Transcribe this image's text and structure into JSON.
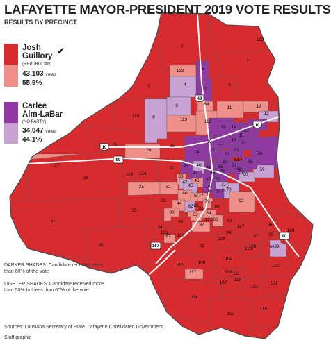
{
  "title": "LAFAYETTE MAYOR-PRESIDENT 2019 VOTE RESULTS",
  "subtitle": "RESULTS BY PRECINCT",
  "colors": {
    "guillory_dark": "#d62b2f",
    "guillory_light": "#ef8f8a",
    "almlabar_dark": "#8e3aa0",
    "almlabar_light": "#c7a2d2",
    "road": "#ffffff",
    "border": "#5a5a5a"
  },
  "candidates": [
    {
      "first": "Josh",
      "last": "Guillory",
      "party": "(REPUBLICAN)",
      "votes": "43,103",
      "votes_unit": "votes",
      "percent": "55.9%",
      "winner_mark": "check-icon"
    },
    {
      "first": "Carlee",
      "last": "Alm-LaBar",
      "party": "(NO PARTY)",
      "votes": "34,047",
      "votes_unit": "votes",
      "percent": "44.1%"
    }
  ],
  "notes": {
    "darker": "DARKER SHADES: Candidate received more than 60% of the vote",
    "lighter": "LIGHTER SHADES: Candidate received more than 50% but less than 60% of the vote"
  },
  "source": "Sources: Lousiana Secretary of State, Lafayette Consildated Government",
  "credit": "Staff graphic",
  "highways": [
    {
      "label": "49",
      "type": "interstate"
    },
    {
      "label": "10",
      "type": "interstate"
    },
    {
      "label": "10",
      "type": "interstate"
    },
    {
      "label": "90",
      "type": "us"
    },
    {
      "label": "90",
      "type": "us"
    },
    {
      "label": "167",
      "type": "us"
    }
  ],
  "precincts": [
    {
      "id": "1",
      "winner": "guillory",
      "shade": "dark"
    },
    {
      "id": "2",
      "winner": "guillory",
      "shade": "dark"
    },
    {
      "id": "3",
      "winner": "guillory",
      "shade": "dark"
    },
    {
      "id": "4",
      "winner": "almlabar",
      "shade": "light"
    },
    {
      "id": "5",
      "winner": "almlabar",
      "shade": "dark"
    },
    {
      "id": "6",
      "winner": "guillory",
      "shade": "dark"
    },
    {
      "id": "7",
      "winner": "almlabar",
      "shade": "dark"
    },
    {
      "id": "8",
      "winner": "almlabar",
      "shade": "light"
    },
    {
      "id": "9",
      "winner": "almlabar",
      "shade": "light"
    },
    {
      "id": "10",
      "winner": "almlabar",
      "shade": "dark"
    },
    {
      "id": "11",
      "winner": "guillory",
      "shade": "light"
    },
    {
      "id": "12",
      "winner": "guillory",
      "shade": "light"
    },
    {
      "id": "13",
      "winner": "almlabar",
      "shade": "light"
    },
    {
      "id": "14",
      "winner": "almlabar",
      "shade": "dark"
    },
    {
      "id": "15",
      "winner": "almlabar",
      "shade": "dark"
    },
    {
      "id": "16",
      "winner": "almlabar",
      "shade": "dark"
    },
    {
      "id": "17",
      "winner": "almlabar",
      "shade": "dark"
    },
    {
      "id": "18",
      "winner": "almlabar",
      "shade": "dark"
    },
    {
      "id": "19",
      "winner": "almlabar",
      "shade": "dark"
    },
    {
      "id": "20",
      "winner": "almlabar",
      "shade": "dark"
    },
    {
      "id": "21",
      "winner": "almlabar",
      "shade": "dark"
    },
    {
      "id": "22",
      "winner": "almlabar",
      "shade": "dark"
    },
    {
      "id": "23",
      "winner": "almlabar",
      "shade": "dark"
    },
    {
      "id": "24",
      "winner": "almlabar",
      "shade": "dark"
    },
    {
      "id": "25",
      "winner": "guillory",
      "shade": "dark"
    },
    {
      "id": "26",
      "winner": "guillory",
      "shade": "light"
    },
    {
      "id": "27",
      "winner": "guillory",
      "shade": "light"
    },
    {
      "id": "28",
      "winner": "guillory",
      "shade": "dark"
    },
    {
      "id": "30",
      "winner": "guillory",
      "shade": "dark"
    },
    {
      "id": "31",
      "winner": "guillory",
      "shade": "light"
    },
    {
      "id": "32",
      "winner": "guillory",
      "shade": "light"
    },
    {
      "id": "33",
      "winner": "guillory",
      "shade": "dark"
    },
    {
      "id": "34",
      "winner": "guillory",
      "shade": "dark"
    },
    {
      "id": "35",
      "winner": "guillory",
      "shade": "dark"
    },
    {
      "id": "36",
      "winner": "guillory",
      "shade": "dark"
    },
    {
      "id": "37",
      "winner": "guillory",
      "shade": "dark"
    },
    {
      "id": "38",
      "winner": "guillory",
      "shade": "light"
    },
    {
      "id": "39",
      "winner": "almlabar",
      "shade": "dark"
    },
    {
      "id": "40",
      "winner": "almlabar",
      "shade": "light"
    },
    {
      "id": "41",
      "winner": "almlabar",
      "shade": "dark"
    },
    {
      "id": "42",
      "winner": "almlabar",
      "shade": "light"
    },
    {
      "id": "43",
      "winner": "guillory",
      "shade": "light"
    },
    {
      "id": "44",
      "winner": "guillory",
      "shade": "light"
    },
    {
      "id": "45",
      "winner": "almlabar",
      "shade": "dark"
    },
    {
      "id": "46",
      "winner": "almlabar",
      "shade": "light"
    },
    {
      "id": "47",
      "winner": "almlabar",
      "shade": "dark"
    },
    {
      "id": "48",
      "winner": "almlabar",
      "shade": "dark"
    },
    {
      "id": "49",
      "winner": "almlabar",
      "shade": "dark"
    },
    {
      "id": "50",
      "winner": "almlabar",
      "shade": "dark"
    },
    {
      "id": "51",
      "winner": "almlabar",
      "shade": "dark"
    },
    {
      "id": "52",
      "winner": "almlabar",
      "shade": "dark"
    },
    {
      "id": "53",
      "winner": "almlabar",
      "shade": "dark"
    },
    {
      "id": "54",
      "winner": "almlabar",
      "shade": "dark"
    },
    {
      "id": "55",
      "winner": "almlabar",
      "shade": "dark"
    },
    {
      "id": "56",
      "winner": "almlabar",
      "shade": "dark"
    },
    {
      "id": "57",
      "winner": "almlabar",
      "shade": "dark"
    },
    {
      "id": "58",
      "winner": "almlabar",
      "shade": "dark"
    },
    {
      "id": "59",
      "winner": "almlabar",
      "shade": "light"
    },
    {
      "id": "60",
      "winner": "almlabar",
      "shade": "light"
    },
    {
      "id": "63",
      "winner": "almlabar",
      "shade": "dark"
    },
    {
      "id": "64",
      "winner": "guillory",
      "shade": "light"
    },
    {
      "id": "65",
      "winner": "almlabar",
      "shade": "dark"
    },
    {
      "id": "67",
      "winner": "guillory",
      "shade": "light"
    },
    {
      "id": "70",
      "winner": "almlabar",
      "shade": "light"
    },
    {
      "id": "71",
      "winner": "guillory",
      "shade": "dark"
    },
    {
      "id": "72",
      "winner": "almlabar",
      "shade": "light"
    },
    {
      "id": "73",
      "winner": "guillory",
      "shade": "light"
    },
    {
      "id": "74",
      "winner": "almlabar",
      "shade": "dark"
    },
    {
      "id": "75",
      "winner": "almlabar",
      "shade": "dark"
    },
    {
      "id": "76",
      "winner": "guillory",
      "shade": "light"
    },
    {
      "id": "77",
      "winner": "guillory",
      "shade": "light"
    },
    {
      "id": "78",
      "winner": "guillory",
      "shade": "light"
    },
    {
      "id": "79",
      "winner": "guillory",
      "shade": "light"
    },
    {
      "id": "80",
      "winner": "guillory",
      "shade": "light"
    },
    {
      "id": "81",
      "winner": "guillory",
      "shade": "light"
    },
    {
      "id": "82",
      "winner": "almlabar",
      "shade": "light"
    },
    {
      "id": "83",
      "winner": "guillory",
      "shade": "light"
    },
    {
      "id": "84",
      "winner": "guillory",
      "shade": "light"
    },
    {
      "id": "85",
      "winner": "guillory",
      "shade": "dark"
    },
    {
      "id": "86",
      "winner": "guillory",
      "shade": "light"
    },
    {
      "id": "87",
      "winner": "guillory",
      "shade": "light"
    },
    {
      "id": "88",
      "winner": "guillory",
      "shade": "dark"
    },
    {
      "id": "89",
      "winner": "guillory",
      "shade": "dark"
    },
    {
      "id": "90",
      "winner": "guillory",
      "shade": "light"
    },
    {
      "id": "91",
      "winner": "guillory",
      "shade": "dark"
    },
    {
      "id": "92",
      "winner": "guillory",
      "shade": "light"
    },
    {
      "id": "93",
      "winner": "guillory",
      "shade": "dark"
    },
    {
      "id": "94",
      "winner": "guillory",
      "shade": "dark"
    },
    {
      "id": "95",
      "winner": "guillory",
      "shade": "dark"
    },
    {
      "id": "96",
      "winner": "guillory",
      "shade": "dark"
    },
    {
      "id": "97",
      "winner": "guillory",
      "shade": "dark"
    },
    {
      "id": "98",
      "winner": "guillory",
      "shade": "dark"
    },
    {
      "id": "99",
      "winner": "almlabar",
      "shade": "light"
    },
    {
      "id": "101",
      "winner": "guillory",
      "shade": "dark"
    },
    {
      "id": "102",
      "winner": "guillory",
      "shade": "dark"
    },
    {
      "id": "103",
      "winner": "guillory",
      "shade": "dark"
    },
    {
      "id": "104",
      "winner": "guillory",
      "shade": "dark"
    },
    {
      "id": "105",
      "winner": "guillory",
      "shade": "dark"
    },
    {
      "id": "106",
      "winner": "guillory",
      "shade": "dark"
    },
    {
      "id": "107",
      "winner": "guillory",
      "shade": "dark"
    },
    {
      "id": "108",
      "winner": "guillory",
      "shade": "dark"
    },
    {
      "id": "109",
      "winner": "guillory",
      "shade": "dark"
    },
    {
      "id": "110",
      "winner": "guillory",
      "shade": "dark"
    },
    {
      "id": "111",
      "winner": "guillory",
      "shade": "dark"
    },
    {
      "id": "112",
      "winner": "guillory",
      "shade": "light"
    },
    {
      "id": "113",
      "winner": "guillory",
      "shade": "light"
    },
    {
      "id": "114",
      "winner": "guillory",
      "shade": "dark"
    },
    {
      "id": "115",
      "winner": "guillory",
      "shade": "dark"
    },
    {
      "id": "116",
      "winner": "guillory",
      "shade": "dark"
    },
    {
      "id": "117",
      "winner": "guillory",
      "shade": "light"
    },
    {
      "id": "118",
      "winner": "guillory",
      "shade": "dark"
    },
    {
      "id": "119",
      "winner": "guillory",
      "shade": "dark"
    },
    {
      "id": "120",
      "winner": "guillory",
      "shade": "dark"
    },
    {
      "id": "121",
      "winner": "guillory",
      "shade": "dark"
    },
    {
      "id": "122",
      "winner": "guillory",
      "shade": "dark"
    },
    {
      "id": "123",
      "winner": "guillory",
      "shade": "light"
    },
    {
      "id": "124",
      "winner": "guillory",
      "shade": "dark"
    },
    {
      "id": "125",
      "winner": "guillory",
      "shade": "dark"
    },
    {
      "id": "126",
      "winner": "guillory",
      "shade": "dark"
    },
    {
      "id": "127",
      "winner": "guillory",
      "shade": "dark"
    },
    {
      "id": "128",
      "winner": "guillory",
      "shade": "dark"
    },
    {
      "id": "129",
      "winner": "guillory",
      "shade": "dark"
    }
  ]
}
